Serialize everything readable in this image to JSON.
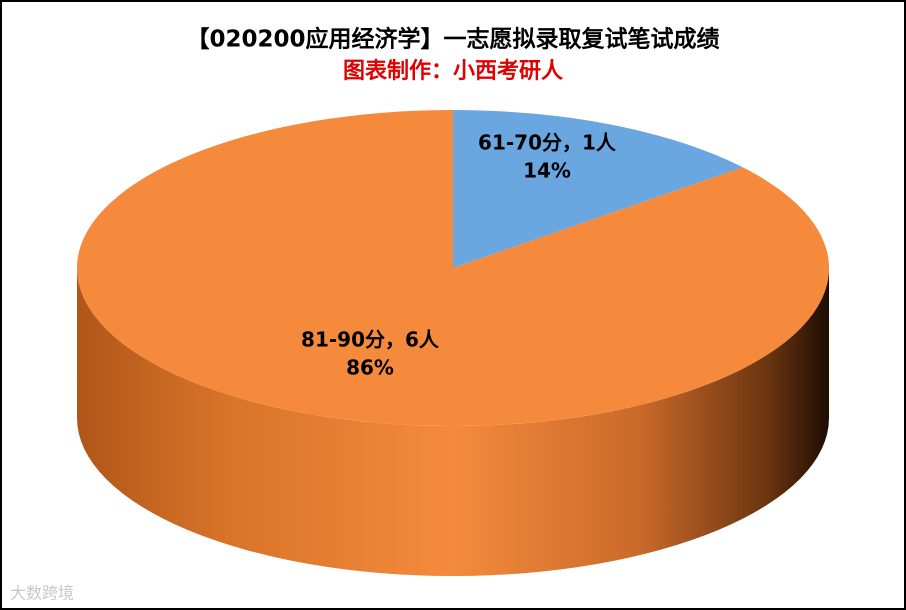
{
  "chart_data": {
    "type": "pie3d",
    "title": "【020200应用经济学】一志愿拟录取复试笔试成绩",
    "subtitle": "图表制作：小西考研人",
    "categories": [
      "61-70分，1人",
      "81-90分，6人"
    ],
    "values": [
      14,
      86
    ],
    "value_labels": [
      "14%",
      "86%"
    ],
    "colors": [
      "#6aa6e0",
      "#f58a3c"
    ],
    "watermark": "大数跨境"
  }
}
